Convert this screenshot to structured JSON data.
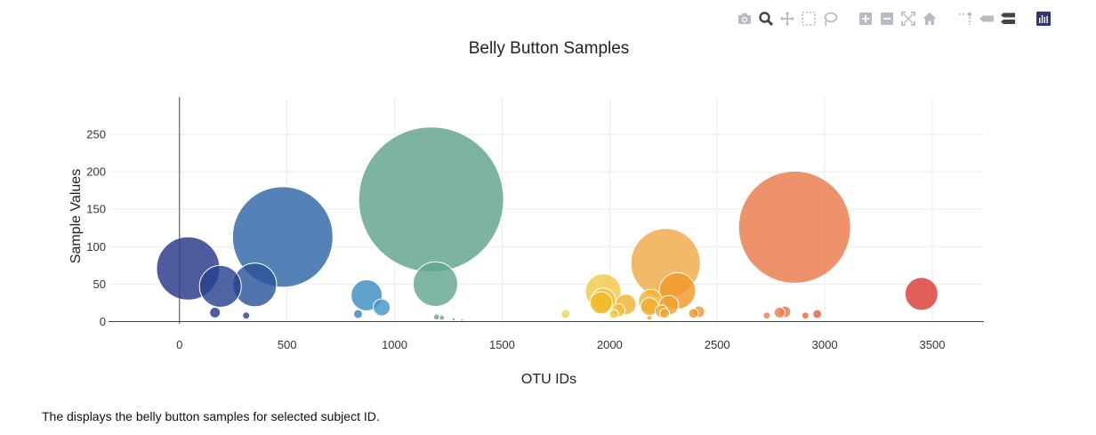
{
  "modebar": {
    "buttons": [
      {
        "name": "camera-icon",
        "title": "Download plot as a png"
      },
      {
        "name": "zoom-icon",
        "title": "Zoom",
        "active": true
      },
      {
        "name": "pan-icon",
        "title": "Pan"
      },
      {
        "name": "box-select-icon",
        "title": "Box Select"
      },
      {
        "name": "lasso-select-icon",
        "title": "Lasso Select"
      },
      {
        "name": "zoom-in-icon",
        "title": "Zoom in"
      },
      {
        "name": "zoom-out-icon",
        "title": "Zoom out"
      },
      {
        "name": "autoscale-icon",
        "title": "Autoscale"
      },
      {
        "name": "reset-axes-icon",
        "title": "Reset axes"
      },
      {
        "name": "spike-lines-icon",
        "title": "Toggle Spike Lines"
      },
      {
        "name": "hover-closest-icon",
        "title": "Show closest data on hover"
      },
      {
        "name": "hover-compare-icon",
        "title": "Compare data on hover"
      },
      {
        "name": "plotly-logo-icon",
        "title": "Produced with Plotly"
      }
    ]
  },
  "chart_data": {
    "type": "scatter",
    "title": "Belly Button Samples",
    "xlabel": "OTU IDs",
    "ylabel": "Sample Values",
    "xlim": [
      -330,
      3740
    ],
    "ylim": [
      -3,
      300
    ],
    "xticks": [
      0,
      500,
      1000,
      1500,
      2000,
      2500,
      3000,
      3500
    ],
    "yticks": [
      0,
      50,
      100,
      150,
      200,
      250
    ],
    "grid": true,
    "legend": "none",
    "marker_size_encodes": "sample value",
    "colorscale": "Earth",
    "points": [
      {
        "x": 40,
        "y": 71,
        "color": "#27388a"
      },
      {
        "x": 190,
        "y": 47,
        "color": "#28428f"
      },
      {
        "x": 165,
        "y": 12,
        "color": "#27388a"
      },
      {
        "x": 310,
        "y": 8,
        "color": "#28428f"
      },
      {
        "x": 350,
        "y": 49,
        "color": "#2a5598"
      },
      {
        "x": 480,
        "y": 113,
        "color": "#2f66a6"
      },
      {
        "x": 830,
        "y": 10,
        "color": "#3a86bf"
      },
      {
        "x": 870,
        "y": 35,
        "color": "#3b8ec2"
      },
      {
        "x": 940,
        "y": 19,
        "color": "#4496c4"
      },
      {
        "x": 1170,
        "y": 163,
        "color": "#5fa38c"
      },
      {
        "x": 1190,
        "y": 50,
        "color": "#62a78f"
      },
      {
        "x": 1195,
        "y": 6,
        "color": "#62a78f"
      },
      {
        "x": 1220,
        "y": 5,
        "color": "#62a78f"
      },
      {
        "x": 1275,
        "y": 3,
        "color": "#6aab92"
      },
      {
        "x": 1315,
        "y": 2,
        "color": "#6aab92"
      },
      {
        "x": 1795,
        "y": 10,
        "color": "#f2d44e"
      },
      {
        "x": 1970,
        "y": 40,
        "color": "#f0c948"
      },
      {
        "x": 1970,
        "y": 28,
        "color": "#f0c23c"
      },
      {
        "x": 1960,
        "y": 25,
        "color": "#f0b929"
      },
      {
        "x": 2020,
        "y": 10,
        "color": "#f0c23c"
      },
      {
        "x": 2040,
        "y": 15,
        "color": "#efbd35"
      },
      {
        "x": 2075,
        "y": 23,
        "color": "#f0b232"
      },
      {
        "x": 2190,
        "y": 27,
        "color": "#f0b232"
      },
      {
        "x": 2185,
        "y": 20,
        "color": "#efad2e"
      },
      {
        "x": 2185,
        "y": 5,
        "color": "#efad2e"
      },
      {
        "x": 2260,
        "y": 78,
        "color": "#f0a94a"
      },
      {
        "x": 2240,
        "y": 14,
        "color": "#efa331"
      },
      {
        "x": 2255,
        "y": 11,
        "color": "#efa331"
      },
      {
        "x": 2275,
        "y": 22,
        "color": "#f0a02e"
      },
      {
        "x": 2315,
        "y": 41,
        "color": "#f0982a"
      },
      {
        "x": 2390,
        "y": 11,
        "color": "#ef952f"
      },
      {
        "x": 2415,
        "y": 13,
        "color": "#ef9532"
      },
      {
        "x": 2730,
        "y": 8,
        "color": "#ec8051"
      },
      {
        "x": 2790,
        "y": 12,
        "color": "#eb7c4c"
      },
      {
        "x": 2815,
        "y": 13,
        "color": "#ea764a"
      },
      {
        "x": 2860,
        "y": 126,
        "color": "#ea7a4c"
      },
      {
        "x": 2910,
        "y": 8,
        "color": "#e56a44"
      },
      {
        "x": 2965,
        "y": 10,
        "color": "#e26346"
      },
      {
        "x": 3450,
        "y": 37,
        "color": "#da3a36"
      }
    ]
  },
  "caption": "The displays the belly button samples for selected subject ID."
}
